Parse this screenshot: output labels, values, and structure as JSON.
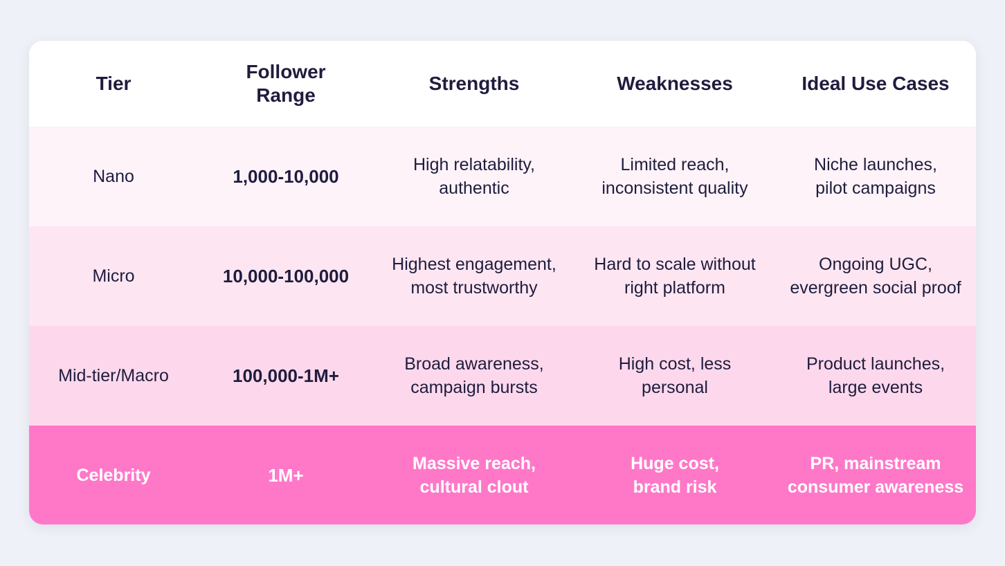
{
  "table": {
    "header": [
      [
        "Tier"
      ],
      [
        "Follower",
        "Range"
      ],
      [
        "Strengths"
      ],
      [
        "Weaknesses"
      ],
      [
        "Ideal Use Cases"
      ]
    ],
    "rows": [
      [
        [
          "Nano"
        ],
        [
          "1,000-10,000"
        ],
        [
          "High relatability,",
          "authentic"
        ],
        [
          "Limited reach,",
          "inconsistent quality"
        ],
        [
          "Niche launches,",
          "pilot campaigns"
        ]
      ],
      [
        [
          "Micro"
        ],
        [
          "10,000-100,000"
        ],
        [
          "Highest engagement,",
          "most trustworthy"
        ],
        [
          "Hard to scale without",
          "right platform"
        ],
        [
          "Ongoing UGC,",
          "evergreen social proof"
        ]
      ],
      [
        [
          "Mid-tier/Macro"
        ],
        [
          "100,000-1M+"
        ],
        [
          "Broad awareness,",
          "campaign bursts"
        ],
        [
          "High cost, less",
          "personal"
        ],
        [
          "Product launches,",
          "large events"
        ]
      ],
      [
        [
          "Celebrity"
        ],
        [
          "1M+"
        ],
        [
          "Massive reach,",
          "cultural clout"
        ],
        [
          "Huge cost,",
          "brand risk"
        ],
        [
          "PR, mainstream",
          "consumer awareness"
        ]
      ]
    ]
  }
}
